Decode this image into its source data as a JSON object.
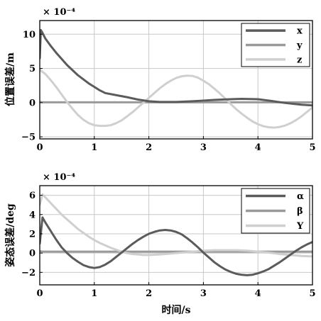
{
  "chart_data": [
    {
      "type": "line",
      "xlabel": "",
      "ylabel": "位置误差/m",
      "exponent_label": "× 10⁻⁴",
      "xlim": [
        0,
        5
      ],
      "ylim": [
        -5.3,
        12
      ],
      "xticks": [
        0,
        1,
        2,
        3,
        4,
        5
      ],
      "yticks": [
        -5,
        0,
        5,
        10
      ],
      "tick_labels_x": [
        "0",
        "1",
        "2",
        "3",
        "4",
        "5"
      ],
      "tick_labels_y": [
        "−5",
        "0",
        "5",
        "10"
      ],
      "grid": true,
      "legend_position": "top-right",
      "series": [
        {
          "name": "x",
          "color": "#5b5b5b",
          "x": [
            0,
            0.02,
            0.05,
            0.1,
            0.2,
            0.3,
            0.5,
            0.7,
            0.9,
            1.0,
            1.1,
            1.2,
            1.4,
            1.6,
            1.8,
            2.0,
            2.2,
            2.5,
            2.8,
            3.0,
            3.2,
            3.5,
            3.7,
            4.0,
            4.2,
            4.5,
            4.8,
            5.0
          ],
          "y": [
            6.5,
            10.6,
            10.2,
            9.4,
            8.3,
            7.3,
            5.5,
            4.0,
            2.8,
            2.3,
            1.8,
            1.4,
            1.1,
            0.8,
            0.45,
            0.2,
            0.1,
            0.1,
            0.2,
            0.3,
            0.4,
            0.5,
            0.55,
            0.5,
            0.3,
            -0.05,
            -0.3,
            -0.4
          ]
        },
        {
          "name": "y",
          "color": "#9a9a9a",
          "x": [
            0,
            0.05,
            0.2,
            1.0,
            2.0,
            3.0,
            4.0,
            5.0
          ],
          "y": [
            0.1,
            0.05,
            0.05,
            0.05,
            0.05,
            0.05,
            0.05,
            0.05
          ]
        },
        {
          "name": "z",
          "color": "#cfcfcf",
          "x": [
            0,
            0.1,
            0.2,
            0.3,
            0.4,
            0.5,
            0.6,
            0.7,
            0.8,
            0.9,
            1.0,
            1.1,
            1.2,
            1.3,
            1.4,
            1.5,
            1.6,
            1.7,
            1.8,
            1.9,
            2.0,
            2.1,
            2.2,
            2.3,
            2.4,
            2.5,
            2.6,
            2.7,
            2.8,
            2.9,
            3.0,
            3.1,
            3.2,
            3.3,
            3.4,
            3.5,
            3.6,
            3.7,
            3.8,
            3.9,
            4.0,
            4.1,
            4.2,
            4.3,
            4.4,
            4.5,
            4.6,
            4.7,
            4.8,
            4.9,
            5.0
          ],
          "y": [
            4.8,
            4.2,
            3.3,
            2.3,
            1.2,
            0.1,
            -0.9,
            -1.8,
            -2.5,
            -3.0,
            -3.3,
            -3.4,
            -3.4,
            -3.3,
            -3.0,
            -2.6,
            -2.0,
            -1.4,
            -0.7,
            0.0,
            0.7,
            1.4,
            2.1,
            2.7,
            3.2,
            3.6,
            3.85,
            3.95,
            3.9,
            3.65,
            3.2,
            2.7,
            2.05,
            1.35,
            0.6,
            -0.2,
            -0.95,
            -1.6,
            -2.2,
            -2.75,
            -3.15,
            -3.45,
            -3.6,
            -3.65,
            -3.55,
            -3.35,
            -3.0,
            -2.55,
            -2.0,
            -1.35,
            -0.7
          ]
        }
      ]
    },
    {
      "type": "line",
      "xlabel": "时间/s",
      "ylabel": "姿态误差/deg",
      "exponent_label": "× 10⁻⁴",
      "xlim": [
        0,
        5
      ],
      "ylim": [
        -3.3,
        7
      ],
      "xticks": [
        0,
        1,
        2,
        3,
        4,
        5
      ],
      "yticks": [
        -2,
        0,
        2,
        4,
        6
      ],
      "tick_labels_x": [
        "0",
        "1",
        "2",
        "3",
        "4",
        "5"
      ],
      "tick_labels_y": [
        "−2",
        "0",
        "2",
        "4",
        "6"
      ],
      "grid": true,
      "legend_position": "top-right",
      "series": [
        {
          "name": "α",
          "color": "#5b5b5b",
          "x": [
            0,
            0.05,
            0.1,
            0.2,
            0.3,
            0.4,
            0.5,
            0.6,
            0.7,
            0.8,
            0.9,
            1.0,
            1.1,
            1.2,
            1.3,
            1.4,
            1.5,
            1.6,
            1.7,
            1.8,
            1.9,
            2.0,
            2.1,
            2.2,
            2.3,
            2.4,
            2.5,
            2.6,
            2.7,
            2.8,
            2.9,
            3.0,
            3.1,
            3.2,
            3.3,
            3.4,
            3.5,
            3.6,
            3.7,
            3.8,
            3.9,
            4.0,
            4.1,
            4.2,
            4.3,
            4.4,
            4.5,
            4.6,
            4.7,
            4.8,
            4.9,
            5.0
          ],
          "y": [
            1.0,
            3.7,
            3.2,
            2.3,
            1.4,
            0.6,
            0.0,
            -0.5,
            -0.9,
            -1.25,
            -1.45,
            -1.55,
            -1.45,
            -1.2,
            -0.85,
            -0.4,
            0.05,
            0.5,
            0.95,
            1.35,
            1.7,
            2.0,
            2.2,
            2.35,
            2.4,
            2.35,
            2.2,
            1.95,
            1.55,
            1.1,
            0.6,
            0.05,
            -0.45,
            -0.95,
            -1.35,
            -1.7,
            -1.95,
            -2.15,
            -2.25,
            -2.3,
            -2.25,
            -2.1,
            -1.9,
            -1.65,
            -1.3,
            -0.95,
            -0.55,
            -0.15,
            0.25,
            0.6,
            0.9,
            1.15
          ]
        },
        {
          "name": "β",
          "color": "#9a9a9a",
          "x": [
            0,
            0.05,
            0.2,
            1.0,
            2.0,
            3.0,
            4.0,
            5.0
          ],
          "y": [
            0.2,
            0.15,
            0.15,
            0.15,
            0.15,
            0.15,
            0.15,
            0.15
          ]
        },
        {
          "name": "Y",
          "color": "#cfcfcf",
          "x": [
            0,
            0.05,
            0.1,
            0.2,
            0.3,
            0.4,
            0.5,
            0.6,
            0.7,
            0.8,
            0.9,
            1.0,
            1.1,
            1.2,
            1.3,
            1.4,
            1.5,
            1.6,
            1.7,
            1.8,
            1.9,
            2.0,
            2.2,
            2.4,
            2.6,
            2.8,
            3.0,
            3.2,
            3.4,
            3.6,
            3.8,
            4.0,
            4.2,
            4.4,
            4.6,
            4.8,
            5.0
          ],
          "y": [
            5.0,
            6.1,
            5.8,
            5.2,
            4.6,
            4.0,
            3.5,
            3.0,
            2.5,
            2.1,
            1.7,
            1.35,
            1.05,
            0.8,
            0.55,
            0.35,
            0.15,
            0.0,
            -0.1,
            -0.15,
            -0.2,
            -0.2,
            -0.15,
            -0.05,
            0.05,
            0.15,
            0.25,
            0.3,
            0.3,
            0.3,
            0.25,
            0.15,
            0.05,
            -0.1,
            -0.2,
            -0.3,
            -0.35
          ]
        }
      ]
    }
  ]
}
